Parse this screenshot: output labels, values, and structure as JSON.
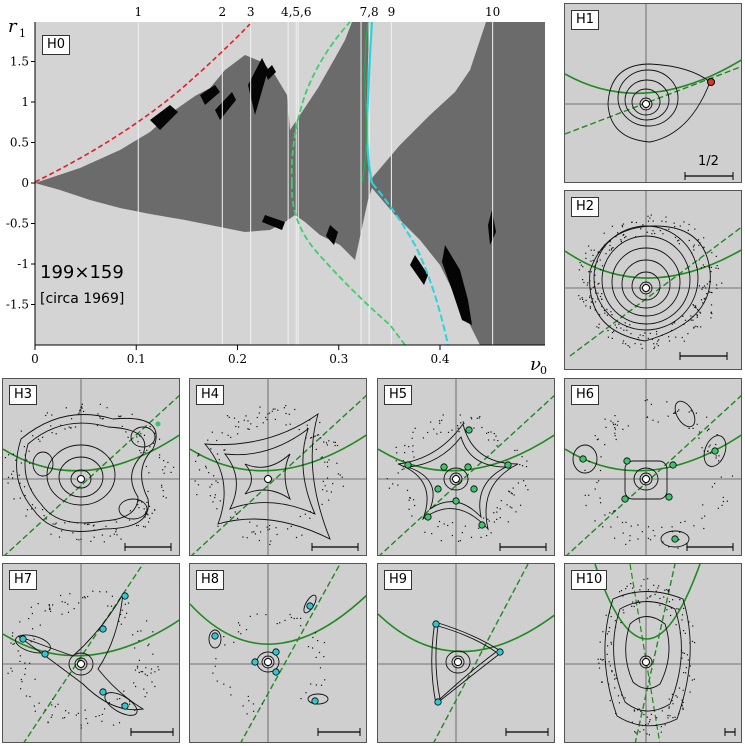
{
  "main": {
    "panel_label": "H0",
    "resolution_text": "199×159",
    "date_text": "[circa 1969]",
    "y_axis_label": "r",
    "y_axis_sub": "1",
    "x_axis_label": "ν",
    "x_axis_sub": "0",
    "marker_labels": [
      "1",
      "2",
      "3",
      "4,5,6",
      "7,8",
      "9",
      "10"
    ]
  },
  "chart_data": {
    "type": "heatmap",
    "title": "",
    "xlabel": "ν0",
    "ylabel": "r1",
    "xlim": [
      0,
      0.5
    ],
    "ylim": [
      -2,
      2
    ],
    "x_ticks": [
      "0",
      "0.1",
      "0.2",
      "0.3",
      "0.4"
    ],
    "x_tick_values": [
      0,
      0.1,
      0.2,
      0.3,
      0.4
    ],
    "y_ticks": [
      "1.5",
      "1",
      "0.5",
      "0",
      "-0.5",
      "-1",
      "-1.5"
    ],
    "y_tick_values": [
      1.5,
      1,
      0.5,
      0,
      -0.5,
      -1,
      -1.5
    ],
    "marker_nu0": [
      0.102,
      0.185,
      0.213,
      0.258,
      0.33,
      0.352,
      0.452
    ],
    "grid_resolution": "199×159",
    "curves": [
      {
        "name": "red dashed",
        "color": "#e02020",
        "style": "dashed"
      },
      {
        "name": "green dashed",
        "color": "#35d06a",
        "style": "dashed"
      },
      {
        "name": "cyan",
        "color": "#2ad4dd",
        "style": "solid/dashed"
      },
      {
        "name": "rainbow axis",
        "color": "gradient",
        "style": "solid"
      }
    ]
  },
  "panels": [
    {
      "label": "H1",
      "scale_label": "1/2"
    },
    {
      "label": "H2",
      "scale_label": ""
    },
    {
      "label": "H3",
      "scale_label": ""
    },
    {
      "label": "H4",
      "scale_label": ""
    },
    {
      "label": "H5",
      "scale_label": ""
    },
    {
      "label": "H6",
      "scale_label": ""
    },
    {
      "label": "H7",
      "scale_label": ""
    },
    {
      "label": "H8",
      "scale_label": ""
    },
    {
      "label": "H9",
      "scale_label": ""
    },
    {
      "label": "H10",
      "scale_label": ""
    }
  ],
  "colors": {
    "panel_bg": "#cfcfcf",
    "dark_region": "#6b6b6b",
    "green_curve": "#1f8a1f",
    "cyan_point": "#31c6d4",
    "green_point": "#3cc46a",
    "red_point": "#d83a2a"
  }
}
